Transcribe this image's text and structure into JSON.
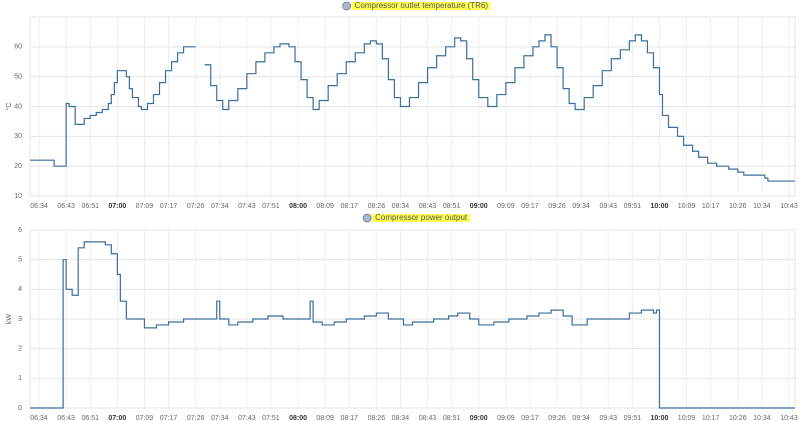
{
  "chart_data": [
    {
      "type": "line",
      "step": "after",
      "ylabel": "°C",
      "grid": true,
      "xlim": [
        "06:31",
        "10:45"
      ],
      "ylim": [
        10,
        70
      ],
      "yticks": [
        10,
        20,
        30,
        40,
        50,
        60
      ],
      "xticks": [
        "06:34",
        "06:43",
        "06:51",
        "07:00",
        "07:09",
        "07:17",
        "07:26",
        "07:34",
        "07:43",
        "07:51",
        "08:00",
        "08:09",
        "08:17",
        "08:26",
        "08:34",
        "08:43",
        "08:51",
        "09:00",
        "09:09",
        "09:17",
        "09:26",
        "09:34",
        "09:43",
        "09:51",
        "10:00",
        "10:09",
        "10:17",
        "10:26",
        "10:34",
        "10:43"
      ],
      "x": [
        "06:31",
        "06:39",
        "06:43",
        "06:44",
        "06:46",
        "06:49",
        "06:51",
        "06:53",
        "06:55",
        "06:57",
        "06:58",
        "06:59",
        "07:00",
        "07:03",
        "07:04",
        "07:05",
        "07:07",
        "07:08",
        "07:10",
        "07:12",
        "07:14",
        "07:16",
        "07:18",
        "07:20",
        "07:22",
        "07:26",
        "07:27",
        "07:29",
        "07:31",
        "07:33",
        "07:35",
        "07:37",
        "07:40",
        "07:43",
        "07:46",
        "07:49",
        "07:52",
        "07:54",
        "07:57",
        "07:59",
        "08:01",
        "08:03",
        "08:05",
        "08:07",
        "08:10",
        "08:13",
        "08:16",
        "08:19",
        "08:22",
        "08:24",
        "08:26",
        "08:28",
        "08:30",
        "08:32",
        "08:34",
        "08:37",
        "08:40",
        "08:43",
        "08:46",
        "08:49",
        "08:52",
        "08:54",
        "08:56",
        "08:58",
        "09:00",
        "09:03",
        "09:06",
        "09:09",
        "09:12",
        "09:15",
        "09:18",
        "09:20",
        "09:22",
        "09:24",
        "09:26",
        "09:28",
        "09:30",
        "09:32",
        "09:35",
        "09:38",
        "09:41",
        "09:44",
        "09:47",
        "09:50",
        "09:52",
        "09:54",
        "09:56",
        "09:58",
        "10:00",
        "10:01",
        "10:03",
        "10:06",
        "10:08",
        "10:11",
        "10:13",
        "10:16",
        "10:19",
        "10:23",
        "10:26",
        "10:28",
        "10:34",
        "10:35",
        "10:36",
        "10:45"
      ],
      "series": [
        {
          "name": "Compressor outlet temperature (TR6)",
          "color": "#3b6e9c",
          "values": [
            22,
            20,
            41,
            40,
            34,
            36,
            37,
            38,
            39,
            41,
            44,
            48,
            52,
            50,
            46,
            43,
            40,
            39,
            41,
            44,
            48,
            52,
            55,
            58,
            60,
            60,
            null,
            54,
            47,
            42,
            39,
            42,
            46,
            51,
            55,
            58,
            60,
            61,
            60,
            55,
            49,
            43,
            39,
            42,
            47,
            51,
            55,
            58,
            61,
            62,
            61,
            56,
            49,
            43,
            40,
            43,
            48,
            53,
            57,
            60,
            63,
            62,
            56,
            49,
            43,
            40,
            44,
            48,
            53,
            57,
            60,
            62,
            64,
            60,
            53,
            46,
            41,
            39,
            43,
            47,
            52,
            56,
            59,
            62,
            64,
            62,
            58,
            53,
            44,
            37,
            33,
            30,
            27,
            25,
            23,
            21,
            20,
            19,
            18,
            17,
            17,
            16,
            15,
            15
          ]
        }
      ]
    },
    {
      "type": "line",
      "step": "after",
      "ylabel": "kW",
      "grid": true,
      "xlim": [
        "06:31",
        "10:45"
      ],
      "ylim": [
        0,
        6
      ],
      "yticks": [
        0,
        1,
        2,
        3,
        4,
        5,
        6
      ],
      "xticks": [
        "06:34",
        "06:43",
        "06:51",
        "07:00",
        "07:09",
        "07:17",
        "07:26",
        "07:34",
        "07:43",
        "07:51",
        "08:00",
        "08:09",
        "08:17",
        "08:26",
        "08:34",
        "08:43",
        "08:51",
        "09:00",
        "09:09",
        "09:17",
        "09:26",
        "09:34",
        "09:43",
        "09:51",
        "10:00",
        "10:09",
        "10:17",
        "10:26",
        "10:34",
        "10:43"
      ],
      "x": [
        "06:31",
        "06:41",
        "06:42",
        "06:43",
        "06:45",
        "06:47",
        "06:49",
        "06:56",
        "06:58",
        "07:00",
        "07:01",
        "07:03",
        "07:09",
        "07:13",
        "07:17",
        "07:22",
        "07:33",
        "07:34",
        "07:37",
        "07:40",
        "07:45",
        "07:50",
        "07:55",
        "08:04",
        "08:05",
        "08:08",
        "08:12",
        "08:16",
        "08:22",
        "08:26",
        "08:30",
        "08:35",
        "08:38",
        "08:45",
        "08:50",
        "08:53",
        "08:57",
        "09:00",
        "09:05",
        "09:10",
        "09:16",
        "09:20",
        "09:24",
        "09:28",
        "09:31",
        "09:36",
        "09:50",
        "09:54",
        "09:58",
        "09:59",
        "10:00",
        "10:45"
      ],
      "series": [
        {
          "name": "Compressor power output",
          "color": "#3b6e9c",
          "values": [
            0,
            0,
            5,
            4,
            3.8,
            5.4,
            5.6,
            5.5,
            5.2,
            4.5,
            3.6,
            3,
            2.7,
            2.8,
            2.9,
            3,
            3.6,
            3,
            2.8,
            2.9,
            3,
            3.1,
            3,
            3.6,
            2.9,
            2.8,
            2.9,
            3,
            3.1,
            3.2,
            3,
            2.8,
            2.9,
            3,
            3.1,
            3.2,
            3,
            2.8,
            2.9,
            3,
            3.1,
            3.2,
            3.3,
            3.1,
            2.8,
            3,
            3.2,
            3.3,
            3.2,
            3.3,
            0,
            0
          ]
        }
      ]
    }
  ]
}
